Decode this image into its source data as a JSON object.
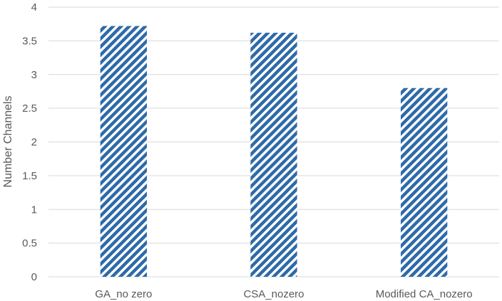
{
  "chart_data": {
    "type": "bar",
    "title": "",
    "xlabel": "",
    "ylabel": "Number Channels",
    "categories": [
      "GA_no zero",
      "CSA_nozero",
      "Modified CA_nozero"
    ],
    "values": [
      3.72,
      3.62,
      2.8
    ],
    "ylim": [
      0,
      4
    ],
    "yticks": [
      "0",
      "0.5",
      "1",
      "1.5",
      "2",
      "2.5",
      "3",
      "3.5",
      "4"
    ],
    "grid": true,
    "legend": "none",
    "bar_color": "#2E6AA8",
    "bar_pattern": "diagonal-stripes"
  }
}
